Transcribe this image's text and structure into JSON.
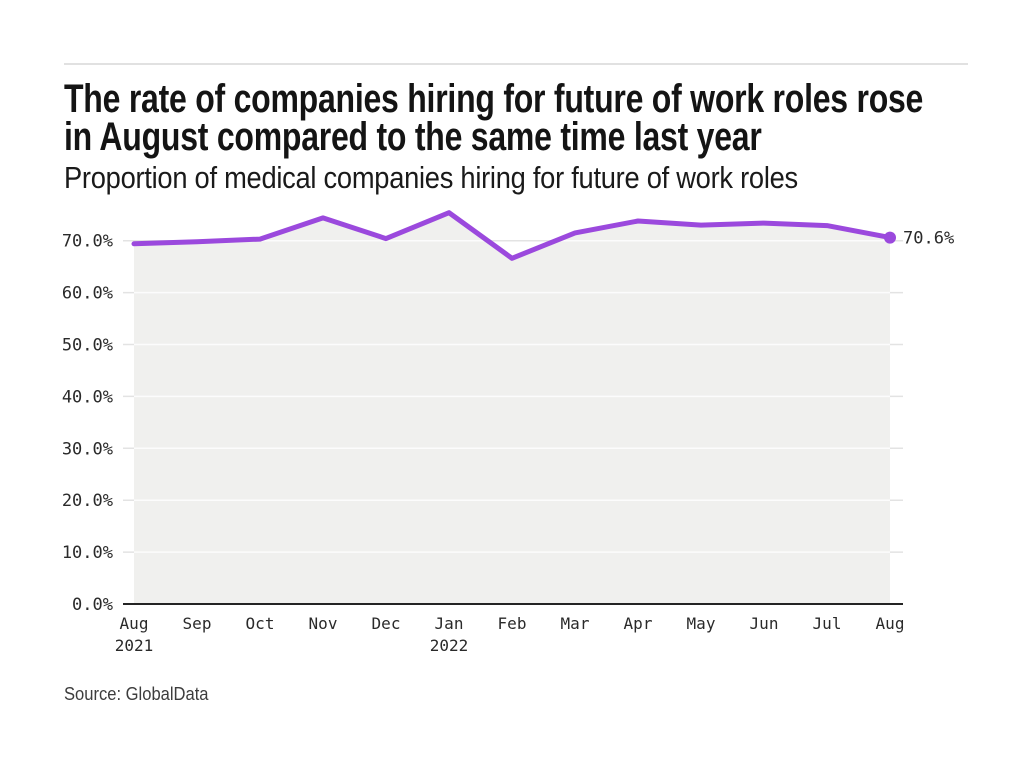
{
  "header": {
    "title_lines": [
      "The rate of companies hiring for future of work roles rose",
      "in August compared to the same time last year"
    ],
    "subtitle": "Proportion of medical companies hiring for future of work roles"
  },
  "footer": {
    "source": "Source: GlobalData"
  },
  "chart_data": {
    "type": "area",
    "title": "The rate of companies hiring for future of work roles rose in August compared to the same time last year",
    "subtitle": "Proportion of medical companies hiring for future of work roles",
    "source": "Source: GlobalData",
    "categories": [
      "Aug 2021",
      "Sep",
      "Oct",
      "Nov",
      "Dec",
      "Jan 2022",
      "Feb",
      "Mar",
      "Apr",
      "May",
      "Jun",
      "Jul",
      "Aug"
    ],
    "x_labels": [
      "Aug",
      "Sep",
      "Oct",
      "Nov",
      "Dec",
      "Jan",
      "Feb",
      "Mar",
      "Apr",
      "May",
      "Jun",
      "Jul",
      "Aug"
    ],
    "x_sublabels": [
      "2021",
      "",
      "",
      "",
      "",
      "2022",
      "",
      "",
      "",
      "",
      "",
      "",
      ""
    ],
    "values": [
      69.4,
      69.8,
      70.3,
      74.4,
      70.4,
      75.4,
      66.6,
      71.5,
      73.8,
      73.0,
      73.4,
      72.9,
      70.6
    ],
    "end_label": "70.6%",
    "y_tick_values": [
      0,
      10,
      20,
      30,
      40,
      50,
      60,
      70
    ],
    "y_tick_labels": [
      "0.0%",
      "10.0%",
      "20.0%",
      "30.0%",
      "40.0%",
      "50.0%",
      "60.0%",
      "70.0%"
    ],
    "ylim": [
      0,
      77.8
    ],
    "grid": true,
    "legend": "none",
    "xlabel": "",
    "ylabel": "",
    "line_color": "#9b49dd",
    "fill_color": "#f0f0ee",
    "grid_color": "#e3e3e3",
    "grid_over_fill_color": "#fcfcfc",
    "axis_color": "#242424",
    "tick_text_color": "#2a2a2a"
  }
}
